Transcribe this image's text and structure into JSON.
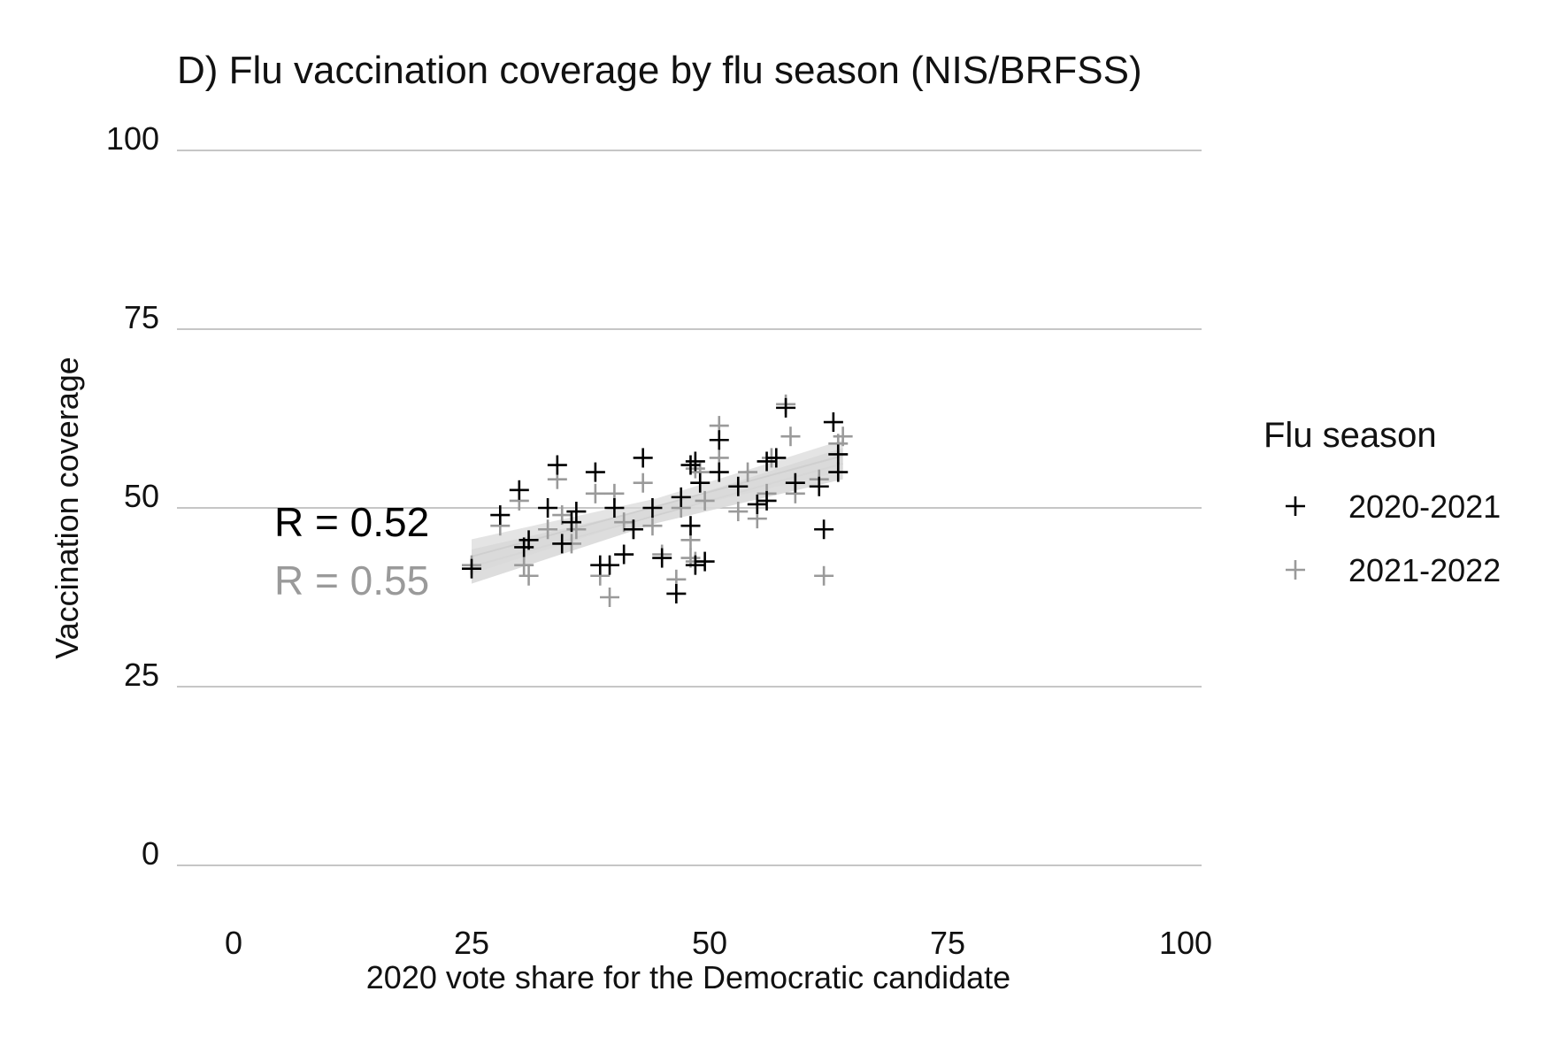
{
  "chart_data": {
    "type": "scatter",
    "title": "D) Flu vaccination coverage by flu season (NIS/BRFSS)",
    "xlabel": "2020 vote share for the Democratic candidate",
    "ylabel": "Vaccination coverage",
    "xlim": [
      0,
      100
    ],
    "ylim": [
      0,
      100
    ],
    "x_ticks": [
      "0",
      "25",
      "50",
      "75",
      "100"
    ],
    "y_ticks": [
      "0",
      "25",
      "50",
      "75",
      "100"
    ],
    "grid": "horizontal",
    "legend": {
      "title": "Flu season",
      "position": "right"
    },
    "series": [
      {
        "name": "2020-2021",
        "color": "#000000",
        "marker": "plus",
        "correlation_label": "R = 0.52",
        "trend": {
          "x": [
            25,
            64
          ],
          "y": [
            41.8,
            56.2
          ]
        },
        "points": [
          [
            25,
            41.5
          ],
          [
            28,
            49
          ],
          [
            30,
            52.5
          ],
          [
            30.5,
            44.5
          ],
          [
            31,
            45.5
          ],
          [
            33,
            50
          ],
          [
            34,
            56
          ],
          [
            34.5,
            45
          ],
          [
            35.5,
            48
          ],
          [
            36,
            49.5
          ],
          [
            38,
            55
          ],
          [
            38.5,
            42
          ],
          [
            39.5,
            42
          ],
          [
            40,
            50
          ],
          [
            41,
            43.5
          ],
          [
            42,
            47
          ],
          [
            43,
            57
          ],
          [
            44,
            50
          ],
          [
            45,
            43
          ],
          [
            46.5,
            38
          ],
          [
            47,
            51.5
          ],
          [
            48,
            56
          ],
          [
            48,
            47.5
          ],
          [
            48.5,
            56.5
          ],
          [
            48.5,
            42
          ],
          [
            49,
            53.5
          ],
          [
            49.5,
            42.5
          ],
          [
            51,
            59.5
          ],
          [
            51,
            55
          ],
          [
            53,
            53
          ],
          [
            55,
            50.5
          ],
          [
            56,
            51
          ],
          [
            56,
            56.5
          ],
          [
            57,
            57
          ],
          [
            58,
            64
          ],
          [
            59,
            53.5
          ],
          [
            61.5,
            53
          ],
          [
            62,
            47
          ],
          [
            63,
            62
          ],
          [
            63.5,
            55
          ],
          [
            63.5,
            57.5
          ]
        ]
      },
      {
        "name": "2021-2022",
        "color": "#9a9a9a",
        "marker": "plus",
        "correlation_label": "R = 0.55",
        "trend": {
          "x": [
            25,
            64
          ],
          "y": [
            43.2,
            57.3
          ]
        },
        "points": [
          [
            25,
            42
          ],
          [
            28,
            47.5
          ],
          [
            30,
            51
          ],
          [
            30.5,
            42
          ],
          [
            31,
            40.5
          ],
          [
            33,
            47
          ],
          [
            34,
            54
          ],
          [
            34.5,
            49
          ],
          [
            35.5,
            45
          ],
          [
            36,
            47
          ],
          [
            38,
            52
          ],
          [
            38.5,
            40.5
          ],
          [
            39.5,
            37.5
          ],
          [
            40,
            52
          ],
          [
            41,
            48
          ],
          [
            42,
            47
          ],
          [
            43,
            53.5
          ],
          [
            44,
            47.5
          ],
          [
            45,
            43.5
          ],
          [
            46.5,
            40
          ],
          [
            47,
            50
          ],
          [
            48,
            43
          ],
          [
            48,
            45.5
          ],
          [
            48.5,
            55.5
          ],
          [
            48.5,
            42.5
          ],
          [
            49,
            55
          ],
          [
            49.5,
            51
          ],
          [
            51,
            61.5
          ],
          [
            51,
            57
          ],
          [
            53,
            49.5
          ],
          [
            54,
            55
          ],
          [
            55,
            48.5
          ],
          [
            56,
            52
          ],
          [
            56.5,
            57
          ],
          [
            58,
            64.5
          ],
          [
            58.5,
            60
          ],
          [
            59,
            52
          ],
          [
            61.5,
            54
          ],
          [
            62,
            40.5
          ],
          [
            63.5,
            59
          ],
          [
            64,
            60
          ]
        ]
      }
    ]
  }
}
